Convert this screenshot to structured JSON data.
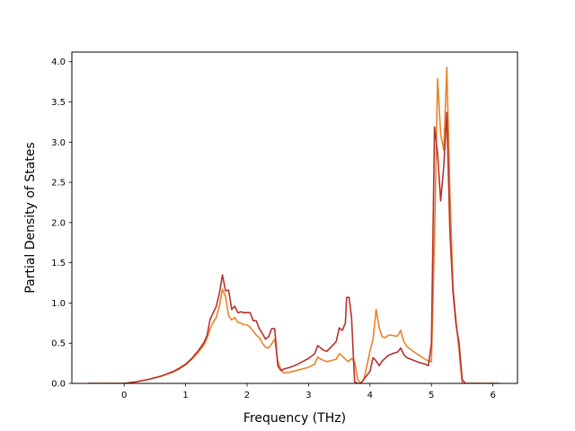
{
  "chart_data": {
    "type": "line",
    "title": "",
    "xlabel": "Frequency (THz)",
    "ylabel": "Partial Density of States",
    "xlim": [
      -0.85,
      6.4
    ],
    "ylim": [
      0,
      4.12
    ],
    "xticks": [
      0,
      1,
      2,
      3,
      4,
      5,
      6
    ],
    "yticks": [
      0.0,
      0.5,
      1.0,
      1.5,
      2.0,
      2.5,
      3.0,
      3.5,
      4.0
    ],
    "xtick_labels": [
      "0",
      "1",
      "2",
      "3",
      "4",
      "5",
      "6"
    ],
    "ytick_labels": [
      "0.0",
      "0.5",
      "1.0",
      "1.5",
      "2.0",
      "2.5",
      "3.0",
      "3.5",
      "4.0"
    ],
    "grid": false,
    "legend": "none",
    "series": [
      {
        "color": "#e8832a",
        "x": [
          -0.58,
          -0.2,
          0.0,
          0.2,
          0.4,
          0.6,
          0.8,
          0.9,
          1.0,
          1.1,
          1.2,
          1.3,
          1.35,
          1.4,
          1.45,
          1.5,
          1.55,
          1.6,
          1.65,
          1.7,
          1.75,
          1.8,
          1.85,
          1.9,
          1.95,
          2.0,
          2.05,
          2.1,
          2.15,
          2.2,
          2.25,
          2.3,
          2.35,
          2.4,
          2.45,
          2.5,
          2.55,
          2.6,
          2.7,
          2.8,
          2.9,
          3.0,
          3.1,
          3.15,
          3.2,
          3.3,
          3.4,
          3.45,
          3.5,
          3.55,
          3.6,
          3.65,
          3.7,
          3.75,
          3.8,
          3.85,
          3.9,
          3.95,
          4.0,
          4.05,
          4.1,
          4.15,
          4.2,
          4.25,
          4.3,
          4.35,
          4.4,
          4.45,
          4.5,
          4.55,
          4.6,
          4.7,
          4.8,
          4.9,
          4.95,
          5.0,
          5.05,
          5.1,
          5.15,
          5.2,
          5.25,
          5.3,
          5.35,
          5.4,
          5.45,
          5.5,
          5.55,
          5.6,
          5.8,
          6.1
        ],
        "y": [
          0.0,
          0.0,
          0.0,
          0.02,
          0.05,
          0.09,
          0.14,
          0.18,
          0.23,
          0.3,
          0.38,
          0.48,
          0.56,
          0.68,
          0.76,
          0.82,
          0.96,
          1.17,
          1.08,
          0.84,
          0.79,
          0.82,
          0.76,
          0.75,
          0.73,
          0.73,
          0.7,
          0.65,
          0.6,
          0.57,
          0.5,
          0.45,
          0.44,
          0.49,
          0.55,
          0.28,
          0.17,
          0.13,
          0.14,
          0.16,
          0.18,
          0.2,
          0.24,
          0.33,
          0.3,
          0.27,
          0.29,
          0.3,
          0.37,
          0.34,
          0.3,
          0.27,
          0.31,
          0.27,
          0.05,
          0.0,
          0.05,
          0.22,
          0.4,
          0.55,
          0.92,
          0.69,
          0.58,
          0.57,
          0.6,
          0.6,
          0.59,
          0.59,
          0.66,
          0.52,
          0.46,
          0.4,
          0.35,
          0.3,
          0.28,
          0.27,
          1.8,
          3.79,
          3.1,
          2.9,
          3.93,
          2.4,
          1.2,
          0.78,
          0.4,
          0.0,
          0.0,
          0.0,
          0.0,
          0.0
        ]
      },
      {
        "color": "#b8312f",
        "x": [
          -0.58,
          -0.2,
          0.0,
          0.2,
          0.4,
          0.6,
          0.8,
          0.9,
          1.0,
          1.1,
          1.2,
          1.3,
          1.35,
          1.4,
          1.45,
          1.5,
          1.55,
          1.6,
          1.65,
          1.7,
          1.75,
          1.8,
          1.85,
          1.9,
          1.95,
          2.0,
          2.05,
          2.1,
          2.15,
          2.2,
          2.25,
          2.3,
          2.35,
          2.4,
          2.45,
          2.5,
          2.55,
          2.6,
          2.7,
          2.8,
          2.9,
          3.0,
          3.1,
          3.15,
          3.2,
          3.25,
          3.3,
          3.4,
          3.45,
          3.5,
          3.55,
          3.6,
          3.62,
          3.66,
          3.7,
          3.75,
          3.8,
          3.85,
          3.9,
          3.95,
          4.0,
          4.05,
          4.1,
          4.15,
          4.2,
          4.3,
          4.4,
          4.45,
          4.5,
          4.55,
          4.6,
          4.7,
          4.8,
          4.9,
          4.95,
          5.0,
          5.05,
          5.1,
          5.15,
          5.2,
          5.25,
          5.3,
          5.35,
          5.4,
          5.45,
          5.5,
          5.55,
          5.6,
          5.8,
          6.1
        ],
        "y": [
          0.0,
          0.0,
          0.0,
          0.02,
          0.05,
          0.09,
          0.15,
          0.19,
          0.24,
          0.31,
          0.4,
          0.51,
          0.6,
          0.8,
          0.88,
          0.96,
          1.12,
          1.35,
          1.15,
          1.16,
          0.92,
          0.96,
          0.88,
          0.89,
          0.88,
          0.88,
          0.88,
          0.78,
          0.78,
          0.68,
          0.62,
          0.55,
          0.58,
          0.68,
          0.68,
          0.22,
          0.16,
          0.18,
          0.2,
          0.23,
          0.27,
          0.31,
          0.37,
          0.47,
          0.44,
          0.41,
          0.4,
          0.48,
          0.52,
          0.69,
          0.66,
          0.75,
          1.07,
          1.07,
          0.82,
          0.02,
          0.0,
          0.0,
          0.05,
          0.1,
          0.15,
          0.32,
          0.28,
          0.22,
          0.28,
          0.35,
          0.38,
          0.39,
          0.44,
          0.36,
          0.32,
          0.29,
          0.26,
          0.24,
          0.22,
          0.5,
          3.19,
          2.86,
          2.27,
          2.69,
          3.37,
          1.9,
          1.14,
          0.73,
          0.5,
          0.05,
          0.0,
          0.0,
          0.0,
          0.0
        ]
      }
    ]
  }
}
